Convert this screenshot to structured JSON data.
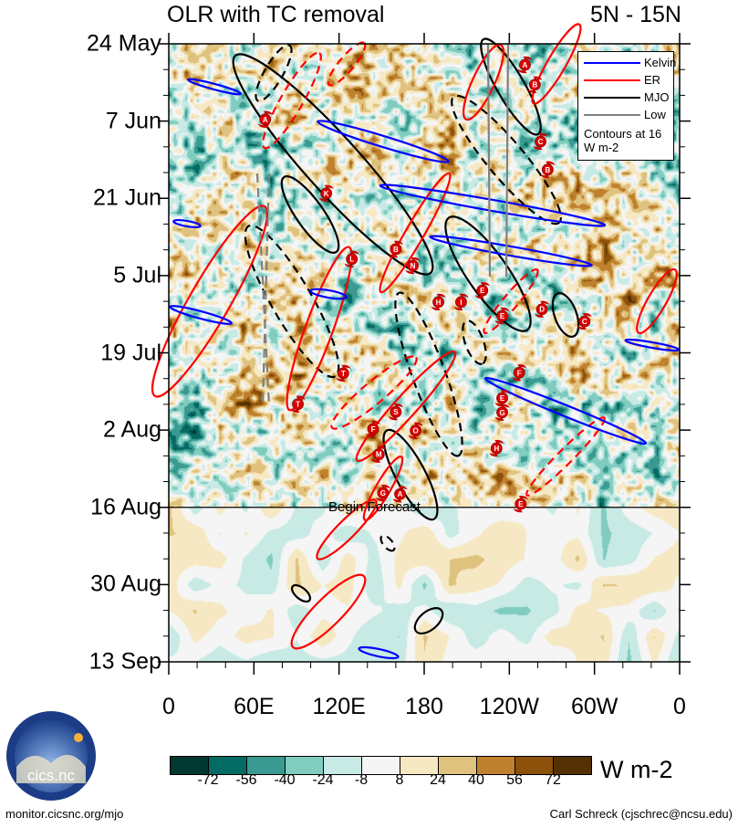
{
  "header": {
    "title": "OLR with TC removal",
    "lat_range": "5N - 15N"
  },
  "chart_data": {
    "type": "heatmap",
    "title": "OLR with TC removal",
    "subtitle": "5N - 15N",
    "xlabel": "Longitude",
    "ylabel": "Date",
    "x_ticks": [
      {
        "label": "0",
        "lon": 0
      },
      {
        "label": "60E",
        "lon": 60
      },
      {
        "label": "120E",
        "lon": 120
      },
      {
        "label": "180",
        "lon": 180
      },
      {
        "label": "120W",
        "lon": 240
      },
      {
        "label": "60W",
        "lon": 300
      },
      {
        "label": "0",
        "lon": 360
      }
    ],
    "y_ticks": [
      {
        "label": "24 May",
        "day": 0
      },
      {
        "label": "7 Jun",
        "day": 14
      },
      {
        "label": "21 Jun",
        "day": 28
      },
      {
        "label": "5 Jul",
        "day": 42
      },
      {
        "label": "19 Jul",
        "day": 56
      },
      {
        "label": "2 Aug",
        "day": 70
      },
      {
        "label": "16 Aug",
        "day": 84
      },
      {
        "label": "30 Aug",
        "day": 98
      },
      {
        "label": "13 Sep",
        "day": 112
      }
    ],
    "xlim": [
      0,
      360
    ],
    "ylim_days": [
      0,
      112
    ],
    "forecast_start_day": 84,
    "forecast_label": "Begin Forecast",
    "legend": {
      "entries": [
        {
          "label": "Kelvin",
          "color": "#0000ff"
        },
        {
          "label": "ER",
          "color": "#ff0000"
        },
        {
          "label": "MJO",
          "color": "#000000"
        },
        {
          "label": "Low",
          "color": "#808080"
        }
      ],
      "note": "Contours at 16 W m-2",
      "placement": "top-right"
    },
    "colorbar": {
      "levels": [
        "-72",
        "-56",
        "-40",
        "-24",
        "-8",
        "8",
        "24",
        "40",
        "56",
        "72"
      ],
      "colors": [
        "#01382f",
        "#036b63",
        "#3a9a92",
        "#80cdc0",
        "#c7eae5",
        "#f5f5f5",
        "#f6e8c3",
        "#dfc27d",
        "#bf812d",
        "#8c510a",
        "#543005"
      ],
      "units": "W m-2"
    },
    "storms": [
      {
        "label": "A",
        "lon": 68,
        "day": 13.7
      },
      {
        "label": "K",
        "lon": 111,
        "day": 27.1
      },
      {
        "label": "L",
        "lon": 129,
        "day": 39
      },
      {
        "label": "B",
        "lon": 160,
        "day": 37.2
      },
      {
        "label": "N",
        "lon": 172,
        "day": 40.2
      },
      {
        "label": "H",
        "lon": 190,
        "day": 46.8
      },
      {
        "label": "I",
        "lon": 206,
        "day": 46.8
      },
      {
        "label": "E",
        "lon": 221,
        "day": 44.7
      },
      {
        "label": "E",
        "lon": 235,
        "day": 49.3
      },
      {
        "label": "D",
        "lon": 263,
        "day": 48.1
      },
      {
        "label": "C",
        "lon": 293,
        "day": 50.3
      },
      {
        "label": "A",
        "lon": 251,
        "day": 3.8
      },
      {
        "label": "B",
        "lon": 258,
        "day": 7.4
      },
      {
        "label": "C",
        "lon": 262,
        "day": 17.7
      },
      {
        "label": "B",
        "lon": 267,
        "day": 22.8
      },
      {
        "label": "T",
        "lon": 123,
        "day": 59.7
      },
      {
        "label": "T",
        "lon": 91,
        "day": 65.3
      },
      {
        "label": "F",
        "lon": 247,
        "day": 59.6
      },
      {
        "label": "E",
        "lon": 235,
        "day": 64.2
      },
      {
        "label": "G",
        "lon": 235,
        "day": 66.8
      },
      {
        "label": "S",
        "lon": 160,
        "day": 66.7
      },
      {
        "label": "F",
        "lon": 144,
        "day": 69.8
      },
      {
        "label": "O",
        "lon": 174,
        "day": 70.1
      },
      {
        "label": "H",
        "lon": 231,
        "day": 73.3
      },
      {
        "label": "M",
        "lon": 148,
        "day": 74.4
      },
      {
        "label": "G",
        "lon": 151,
        "day": 81.4
      },
      {
        "label": "A",
        "lon": 163,
        "day": 81.6
      },
      {
        "label": "E",
        "lon": 248,
        "day": 83.4
      }
    ]
  },
  "logo": {
    "text": "cics.nc",
    "ring_text": "Cooperative Institute for Climate and Satellites"
  },
  "footer": {
    "left": "monitor.cicsnc.org/mjo",
    "right": "Carl Schreck (cjschrec@ncsu.edu)"
  }
}
